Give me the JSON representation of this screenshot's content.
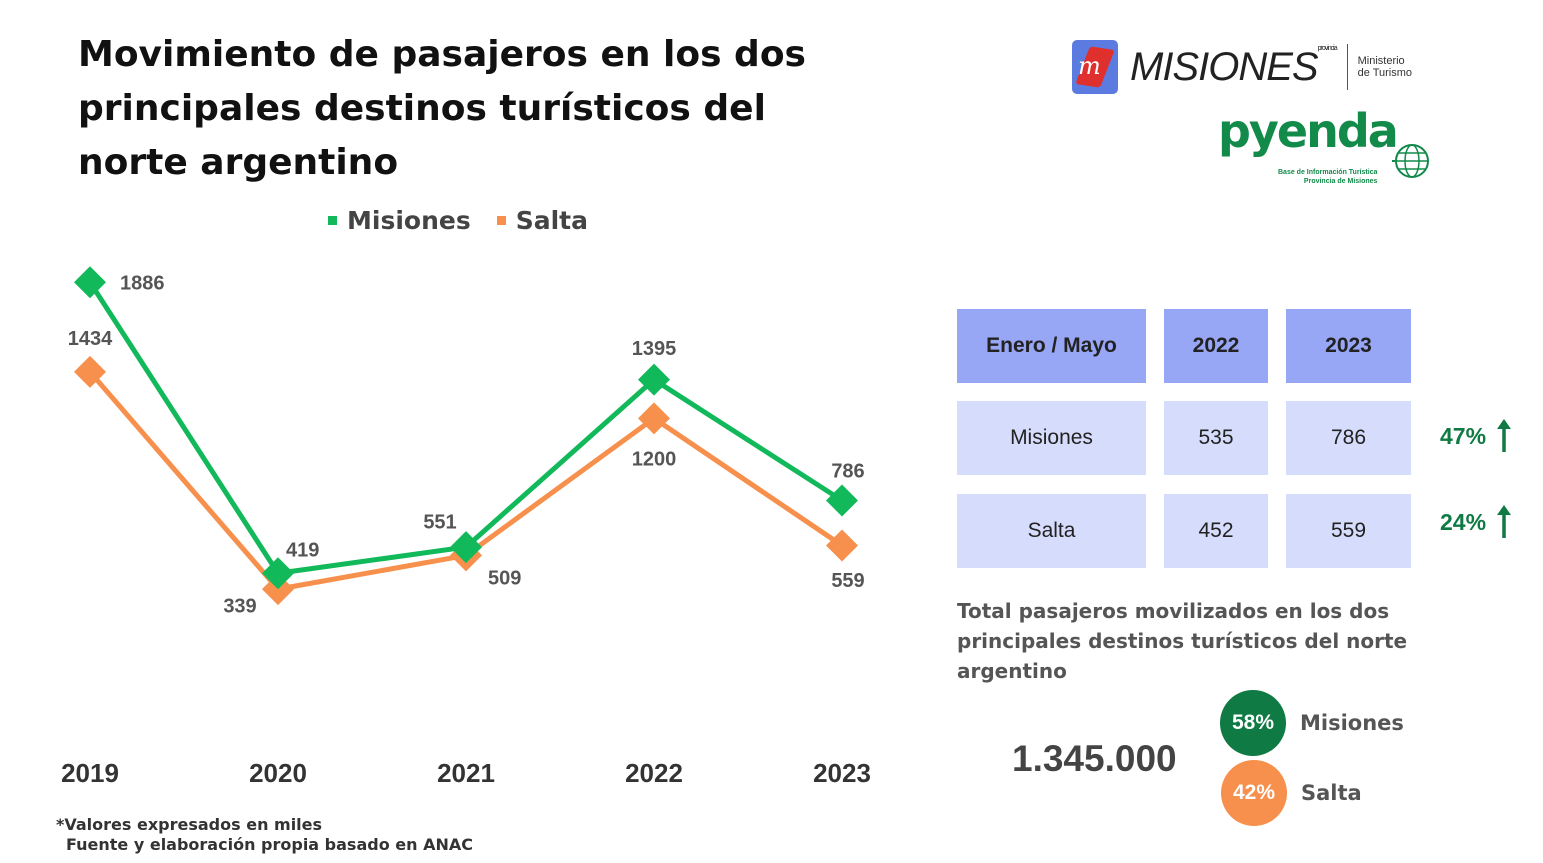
{
  "title": "Movimiento de pasajeros en los dos principales destinos turísticos del norte argentino",
  "colors": {
    "misiones": "#12b95a",
    "salta": "#f7904c",
    "misiones_dark": "#0f7a43",
    "table_head": "#98a6f6",
    "table_body": "#d6dcfb"
  },
  "chart_data": {
    "type": "line",
    "title": "Movimiento de pasajeros en los dos principales destinos turísticos del norte argentino",
    "categories": [
      "2019",
      "2020",
      "2021",
      "2022",
      "2023"
    ],
    "series": [
      {
        "name": "Misiones",
        "values": [
          1886,
          419,
          551,
          1395,
          786
        ],
        "color": "#12b95a",
        "marker": "diamond"
      },
      {
        "name": "Salta",
        "values": [
          1434,
          339,
          509,
          1200,
          559
        ],
        "color": "#f7904c",
        "marker": "diamond"
      }
    ],
    "unit_note": "*Valores expresados en miles",
    "grid": false,
    "legend_position": "top"
  },
  "footnote": {
    "line1": "*Valores expresados en miles",
    "line2": "Fuente y elaboración propia basado en ANAC"
  },
  "logos": {
    "misiones_word": "MISIONES",
    "misiones_super": "provincia",
    "ministerio_line1": "Ministerio",
    "ministerio_line2": "de Turismo",
    "pyenda_word": "pyenda",
    "pyenda_sub1": "Base de Información Turística",
    "pyenda_sub2": "Provincia de Misiones"
  },
  "table": {
    "header": [
      "Enero / Mayo",
      "2022",
      "2023"
    ],
    "rows": [
      {
        "name": "Misiones",
        "v2022": "535",
        "v2023": "786",
        "change": "47%",
        "trend": "up-arrow-icon"
      },
      {
        "name": "Salta",
        "v2022": "452",
        "v2023": "559",
        "change": "24%",
        "trend": "up-arrow-icon"
      }
    ]
  },
  "total": {
    "description": "Total pasajeros movilizados en los dos principales destinos turísticos del norte argentino",
    "value": "1.345.000"
  },
  "share": [
    {
      "pct": "58%",
      "label": "Misiones",
      "color": "#0f7a43"
    },
    {
      "pct": "42%",
      "label": "Salta",
      "color": "#f7904c"
    }
  ]
}
